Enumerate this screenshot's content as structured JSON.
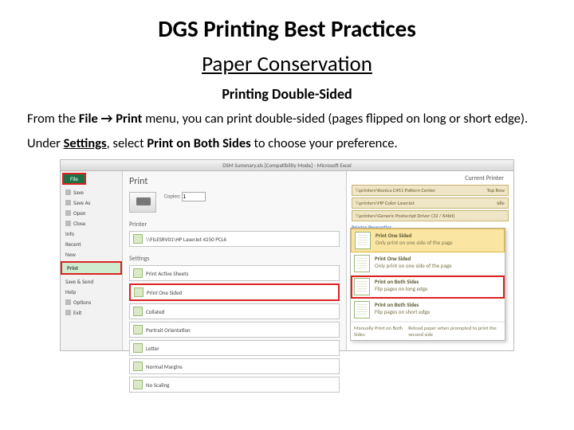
{
  "title": "DGS Printing Best Practices",
  "subtitle": "Paper Conservation",
  "section_heading": "Printing Double-Sided",
  "para1_pre": "From the ",
  "para1_bold1": "File → Print",
  "para1_post": " menu, you can print double-sided (pages flipped on long or short edge).",
  "para2_pre": "Under ",
  "para2_bold1": "Settings",
  "para2_mid": ", select ",
  "para2_bold2": "Print on Both Sides",
  "para2_post": " to choose your preference.",
  "shot": {
    "titlebar": "DSM Summary.xls  [Compatibility Mode] - Microsoft Excel",
    "file_tab": "File",
    "sidebar": [
      "Save",
      "Save As",
      "Open",
      "Close",
      "Info",
      "Recent",
      "New",
      "Print",
      "Save & Send",
      "Help",
      "Options",
      "Exit"
    ],
    "print_heading": "Print",
    "copies_label": "Copies:",
    "copies_value": "1",
    "printer_label": "Printer",
    "printer_name": "\\\\FILESRV01\\HP LaserJet 4250 PCL6",
    "settings_label": "Settings",
    "settings": [
      "Print Active Sheets",
      "Print One Sided",
      "Collated",
      "Portrait Orientation",
      "Letter",
      "Normal Margins",
      "No Scaling"
    ],
    "right_title": "Current Printer",
    "right_rows": [
      [
        "\\\\printsrv\\Konica C451 Pattern Center",
        "Top Row"
      ],
      [
        "\\\\printsrv\\HP Color LaserJet",
        "Idle"
      ],
      [
        "\\\\printsrv\\Generic Postscript Driver (32 / 64bit)",
        ""
      ]
    ],
    "right_link": "Printer Properties",
    "dropdown": [
      {
        "title": "Print One Sided",
        "sub": "Only print on one side of the page"
      },
      {
        "title": "Print One Sided",
        "sub": "Only print on one side of the page"
      },
      {
        "title": "Print on Both Sides",
        "sub": "Flip pages on long edge"
      },
      {
        "title": "Print on Both Sides",
        "sub": "Flip pages on short edge"
      }
    ],
    "footer_left": "Manually Print on Both Sides",
    "footer_right": "Reload paper when prompted to print the second side"
  }
}
